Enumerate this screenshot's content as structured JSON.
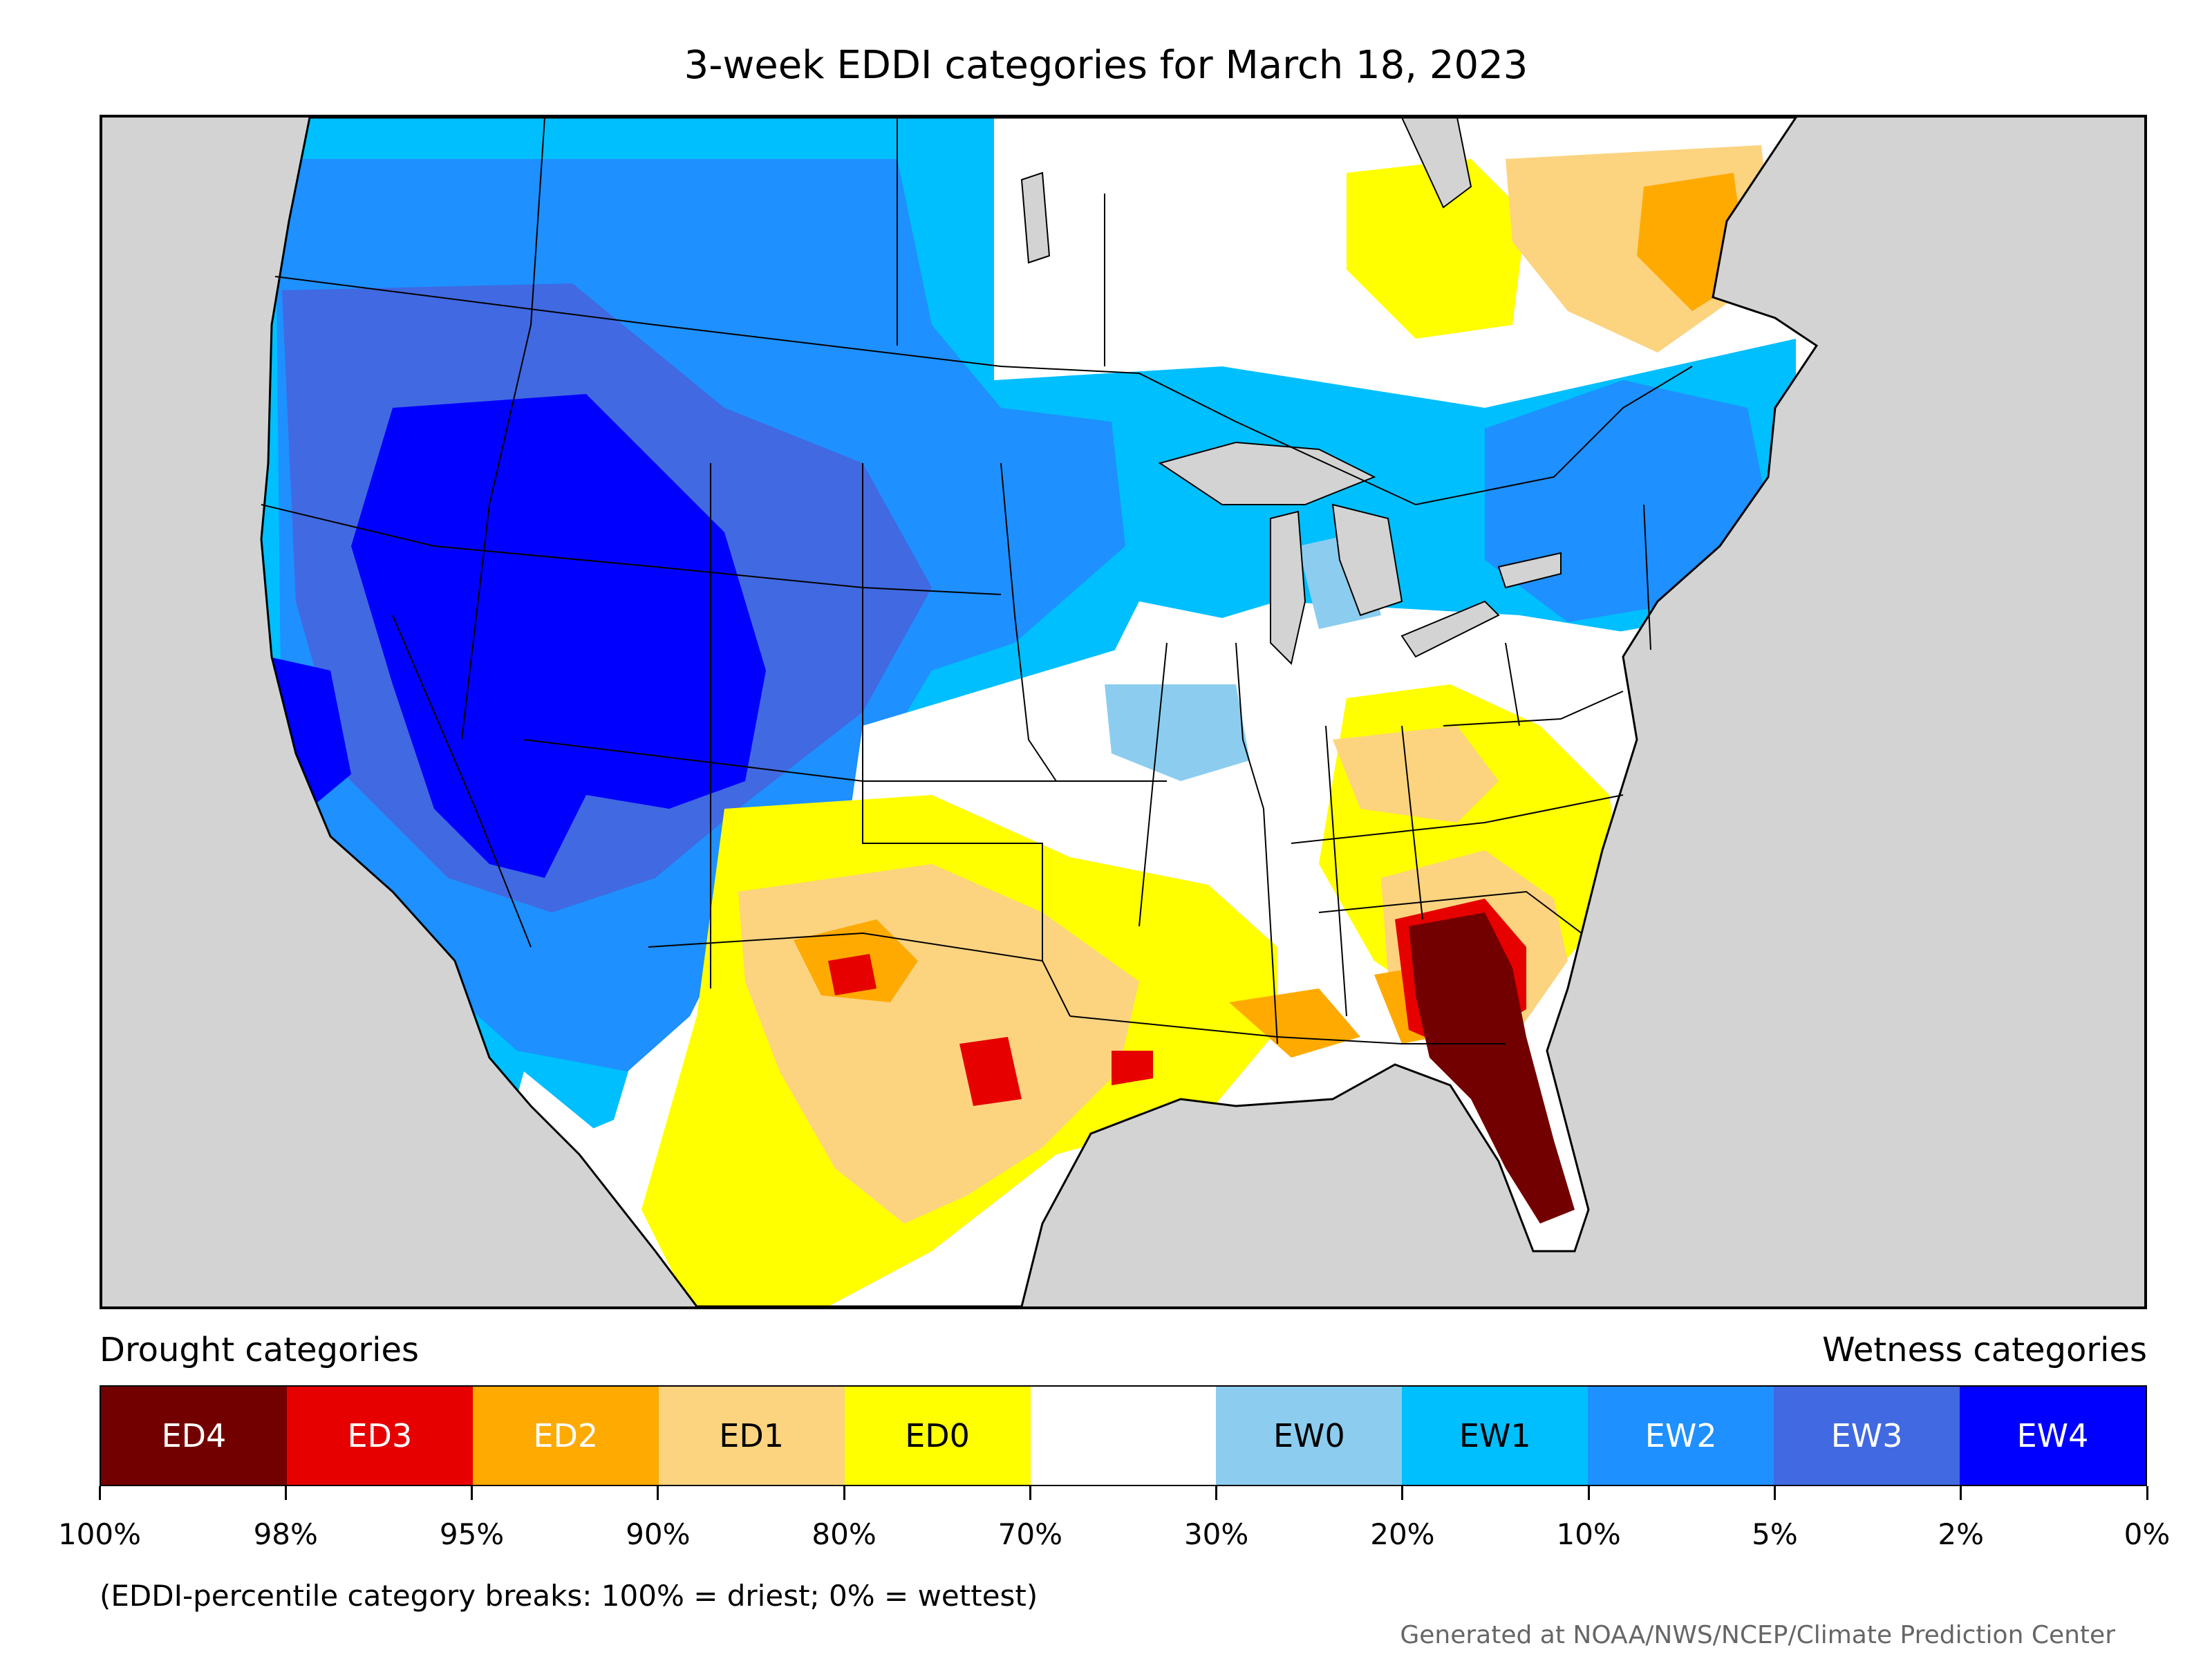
{
  "title": "3-week EDDI categories for March 18, 2023",
  "legend": {
    "drought_heading": "Drought categories",
    "wetness_heading": "Wetness categories",
    "categories": [
      {
        "label": "ED4",
        "color": "#730000",
        "text_color": "#ffffff"
      },
      {
        "label": "ED3",
        "color": "#e60000",
        "text_color": "#ffffff"
      },
      {
        "label": "ED2",
        "color": "#ffaa00",
        "text_color": "#ffffff"
      },
      {
        "label": "ED1",
        "color": "#fcd37f",
        "text_color": "#000000"
      },
      {
        "label": "ED0",
        "color": "#ffff00",
        "text_color": "#000000"
      },
      {
        "label": "",
        "color": "#ffffff",
        "text_color": "#000000"
      },
      {
        "label": "EW0",
        "color": "#8ccdef",
        "text_color": "#000000"
      },
      {
        "label": "EW1",
        "color": "#00bfff",
        "text_color": "#000000"
      },
      {
        "label": "EW2",
        "color": "#1e90ff",
        "text_color": "#ffffff"
      },
      {
        "label": "EW3",
        "color": "#4169e1",
        "text_color": "#ffffff"
      },
      {
        "label": "EW4",
        "color": "#0000ff",
        "text_color": "#ffffff"
      }
    ],
    "breaks": [
      "100%",
      "98%",
      "95%",
      "90%",
      "80%",
      "70%",
      "30%",
      "20%",
      "10%",
      "5%",
      "2%",
      "0%"
    ]
  },
  "note": "(EDDI-percentile category breaks: 100% = driest; 0% = wettest)",
  "credit": "Generated at NOAA/NWS/NCEP/Climate Prediction Center",
  "map_colors": {
    "ocean": "#d3d3d3",
    "land": "#ffffff",
    "border": "#000000"
  }
}
